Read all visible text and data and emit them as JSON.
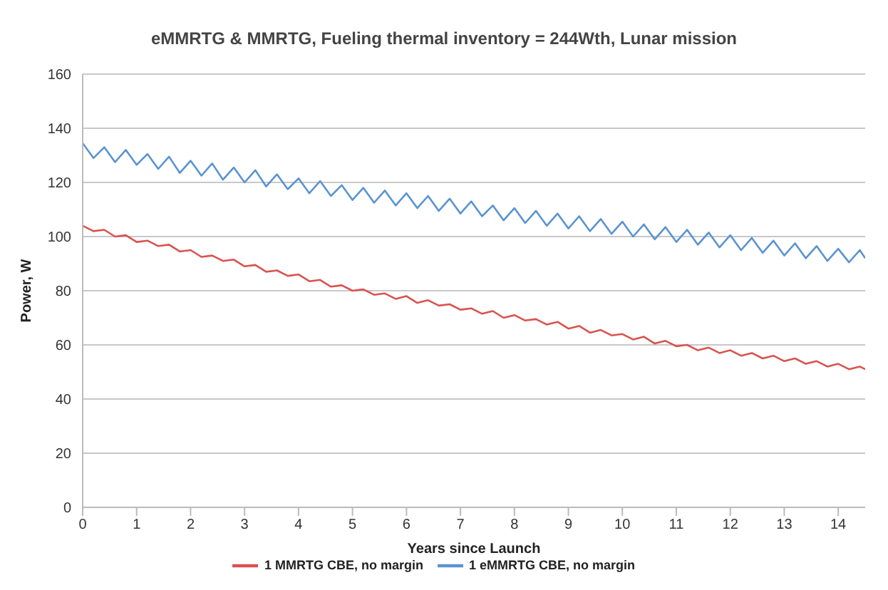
{
  "chart_data": {
    "type": "line",
    "title": "eMMRTG & MMRTG, Fueling thermal inventory = 244Wth, Lunar mission",
    "xlabel": "Years since Launch",
    "ylabel": "Power, W",
    "x": [
      0,
      0.2,
      0.4,
      0.6,
      0.8,
      1,
      1.2,
      1.4,
      1.6,
      1.8,
      2,
      2.2,
      2.4,
      2.6,
      2.8,
      3,
      3.2,
      3.4,
      3.6,
      3.8,
      4,
      4.2,
      4.4,
      4.6,
      4.8,
      5,
      5.2,
      5.4,
      5.6,
      5.8,
      6,
      6.2,
      6.4,
      6.6,
      6.8,
      7,
      7.2,
      7.4,
      7.6,
      7.8,
      8,
      8.2,
      8.4,
      8.6,
      8.8,
      9,
      9.2,
      9.4,
      9.6,
      9.8,
      10,
      10.2,
      10.4,
      10.6,
      10.8,
      11,
      11.2,
      11.4,
      11.6,
      11.8,
      12,
      12.2,
      12.4,
      12.6,
      12.8,
      13,
      13.2,
      13.4,
      13.6,
      13.8,
      14,
      14.2,
      14.4,
      14.5
    ],
    "series": [
      {
        "name": "1 eMMRTG CBE, no margin",
        "color": "#5b93d0",
        "values": [
          134.5,
          129,
          133,
          127.5,
          132,
          126.5,
          130.5,
          125,
          129.5,
          123.5,
          128,
          122.5,
          127,
          121,
          125.5,
          120,
          124.5,
          118.5,
          123,
          117.5,
          121.5,
          116,
          120.5,
          115,
          119,
          113.5,
          118,
          112.5,
          117,
          111.5,
          116,
          110.5,
          115,
          109.5,
          114,
          108.5,
          113,
          107.5,
          111.5,
          106,
          110.5,
          105,
          109.5,
          104,
          108.5,
          103,
          107.5,
          102,
          106.5,
          101,
          105.5,
          100,
          104.5,
          99,
          103.5,
          98,
          102.5,
          97,
          101.5,
          96,
          100.5,
          95,
          99.5,
          94,
          98.5,
          93,
          97.5,
          92,
          96.5,
          91,
          95.5,
          90.5,
          95,
          92
        ]
      },
      {
        "name": "1 MMRTG CBE, no margin",
        "color": "#d9534f",
        "values": [
          104,
          102,
          102.5,
          100,
          100.5,
          98,
          98.5,
          96.5,
          97,
          94.5,
          95,
          92.5,
          93,
          91,
          91.5,
          89,
          89.5,
          87,
          87.5,
          85.5,
          86,
          83.5,
          84,
          81.5,
          82,
          80,
          80.5,
          78.5,
          79,
          77,
          78,
          75.5,
          76.5,
          74.5,
          75,
          73,
          73.5,
          71.5,
          72.5,
          70,
          71,
          69,
          69.5,
          67.5,
          68.5,
          66,
          67,
          64.5,
          65.5,
          63.5,
          64,
          62,
          63,
          60.5,
          61.5,
          59.5,
          60,
          58,
          59,
          57,
          58,
          56,
          57,
          55,
          56,
          54,
          55,
          53,
          54,
          52,
          53,
          51,
          52,
          51
        ]
      }
    ],
    "xlim": [
      0,
      14.5
    ],
    "xticks": [
      0,
      1,
      2,
      3,
      4,
      5,
      6,
      7,
      8,
      9,
      10,
      11,
      12,
      13,
      14
    ],
    "ylim": [
      0,
      160
    ],
    "yticks": [
      0,
      20,
      40,
      60,
      80,
      100,
      120,
      140,
      160
    ],
    "grid": "y",
    "legend": "bottom",
    "marker": "none"
  }
}
